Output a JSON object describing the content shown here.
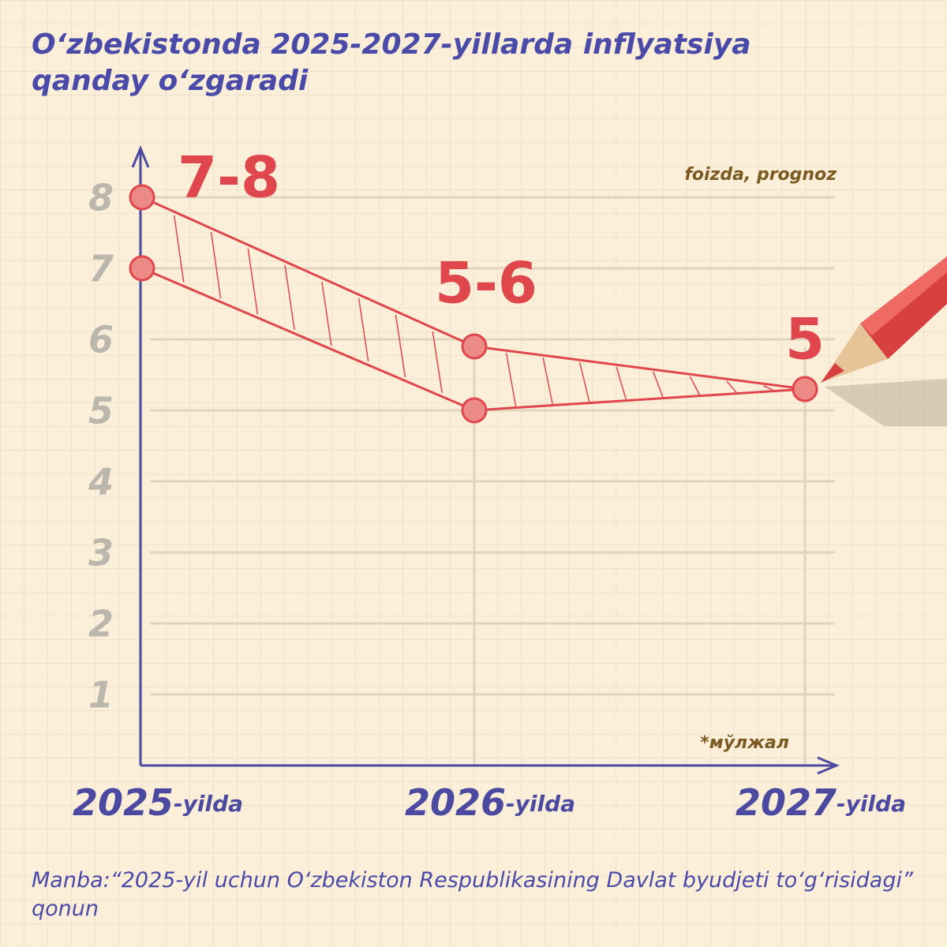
{
  "chart_data": {
    "type": "range",
    "title": "O‘zbekistonda 2025-2027-yillarda inflyatsiya qanday o‘zgaradi",
    "unit_note": "foizda, prognoz",
    "note": "*мўлжал",
    "source": "Manba:“2025-yil uchun O‘zbekiston Respublikasining Davlat byudjeti to‘g‘risidagi” qonun",
    "categories": [
      "2025",
      "2026",
      "2027"
    ],
    "category_suffix": "-yilda",
    "series": [
      {
        "name": "upper",
        "color": "#e0474c",
        "values": [
          8,
          5.9,
          5.3
        ]
      },
      {
        "name": "lower",
        "color": "#e0474c",
        "values": [
          7,
          5,
          5.3
        ]
      }
    ],
    "value_labels": [
      "7-8",
      "5-6",
      "5"
    ],
    "ylim": [
      0,
      8.7
    ],
    "yticks": [
      1,
      2,
      3,
      4,
      5,
      6,
      7,
      8
    ],
    "grid": true
  }
}
